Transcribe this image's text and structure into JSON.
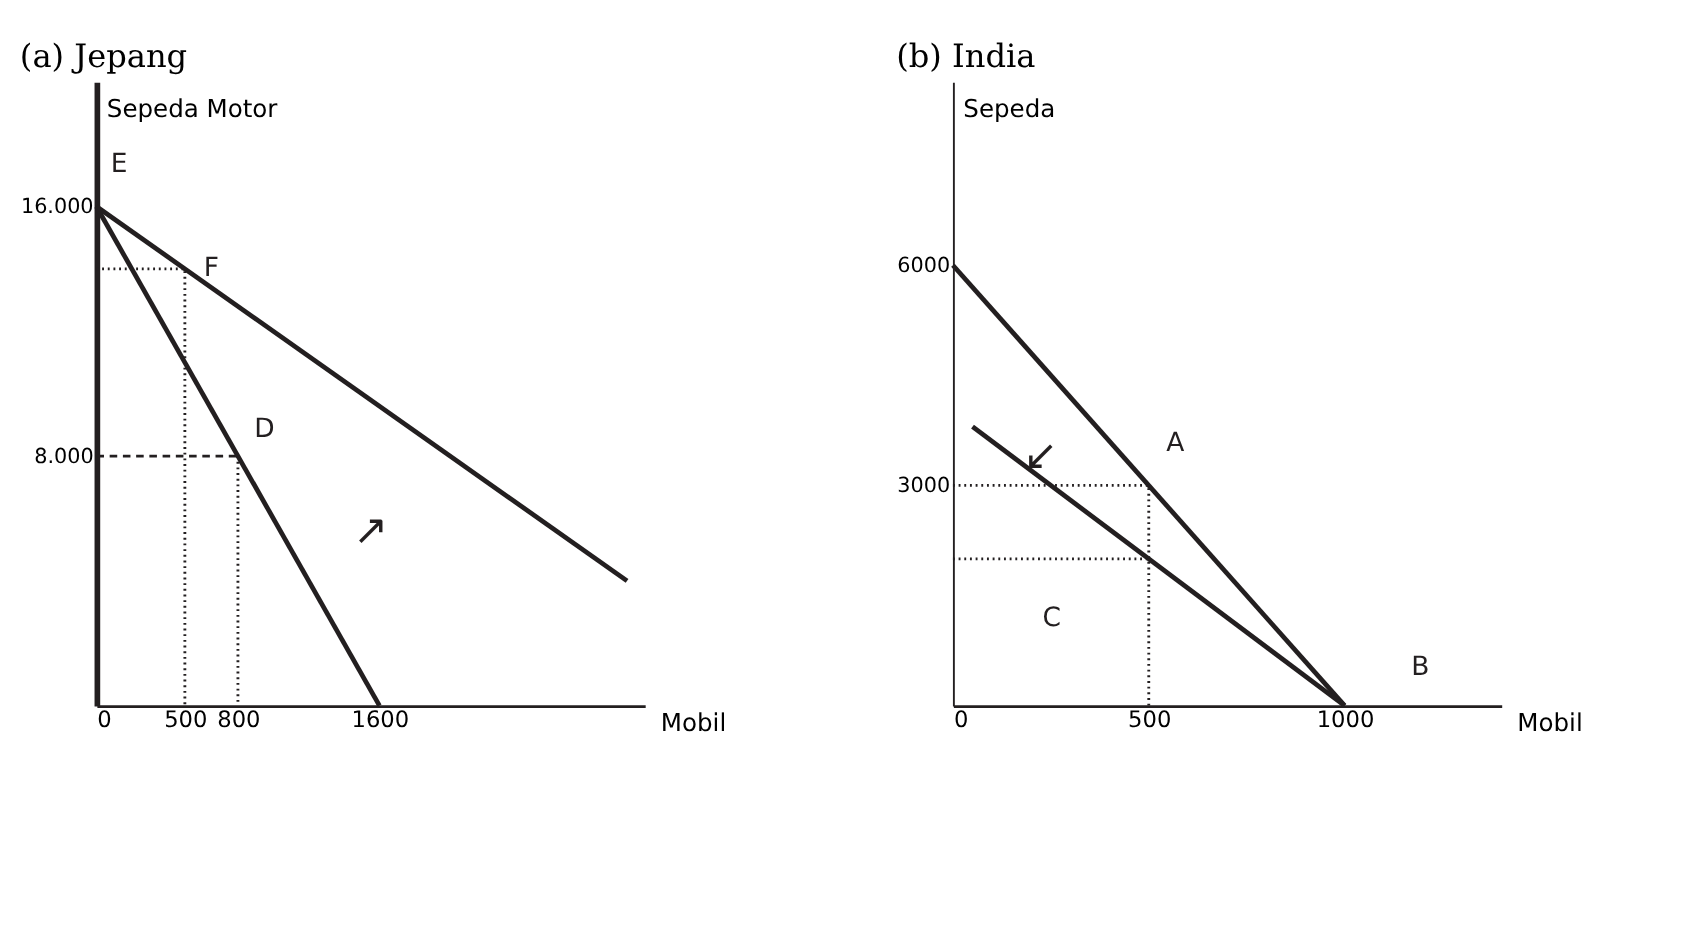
{
  "chart_data": [
    {
      "type": "line",
      "title": "(a) Jepang",
      "xlabel": "Mobil",
      "ylabel": "Sepeda Motor",
      "grid": false,
      "marker": "none",
      "xlim": [
        0,
        3100
      ],
      "ylim": [
        0,
        20000
      ],
      "xticks": [
        0,
        500,
        800,
        1600
      ],
      "yticks": [
        {
          "value": 8000,
          "label": "8.000"
        },
        {
          "value": 16000,
          "label": "16.000"
        }
      ],
      "series": [
        {
          "x": [
            0,
            1600
          ],
          "values": [
            16000,
            0
          ],
          "color": "#231f20",
          "line_style": "solid"
        },
        {
          "x": [
            0,
            3000
          ],
          "values": [
            16000,
            4000
          ],
          "color": "#231f20",
          "line_style": "solid"
        },
        {
          "x": [
            0,
            500,
            500
          ],
          "values": [
            14000,
            14000,
            0
          ],
          "color": "#231f20",
          "line_style": "dotted"
        },
        {
          "x": [
            0,
            800
          ],
          "values": [
            8000,
            8000
          ],
          "color": "#231f20",
          "line_style": "dashed"
        },
        {
          "x": [
            800,
            800
          ],
          "values": [
            8000,
            0
          ],
          "color": "#231f20",
          "line_style": "dotted"
        }
      ],
      "annotations": [
        {
          "text": "E",
          "x": 0,
          "y": 16000
        },
        {
          "text": "F",
          "x": 500,
          "y": 14000
        },
        {
          "text": "D",
          "x": 800,
          "y": 8000
        },
        "↗"
      ]
    },
    {
      "type": "line",
      "title": "(b)  India",
      "xlabel": "Mobil",
      "ylabel": "Sepeda",
      "grid": false,
      "marker": "none",
      "xlim": [
        0,
        1400
      ],
      "ylim": [
        0,
        8500
      ],
      "xticks": [
        0,
        500,
        1000
      ],
      "yticks": [
        3000,
        6000
      ],
      "series": [
        {
          "x": [
            0,
            1000
          ],
          "values": [
            6000,
            0
          ],
          "color": "#231f20",
          "line_style": "solid"
        },
        {
          "x": [
            50,
            1000
          ],
          "values": [
            3800,
            0
          ],
          "color": "#231f20",
          "line_style": "solid"
        },
        {
          "x": [
            0,
            500,
            500
          ],
          "values": [
            3000,
            3000,
            0
          ],
          "color": "#231f20",
          "line_style": "dotted"
        },
        {
          "x": [
            0,
            500
          ],
          "values": [
            2000,
            2000
          ],
          "color": "#231f20",
          "line_style": "dotted"
        }
      ],
      "annotations": [
        {
          "text": "A",
          "x": 500,
          "y": 3000
        },
        {
          "text": "B",
          "x": 1000,
          "y": 0
        },
        "C",
        "↙"
      ]
    }
  ]
}
